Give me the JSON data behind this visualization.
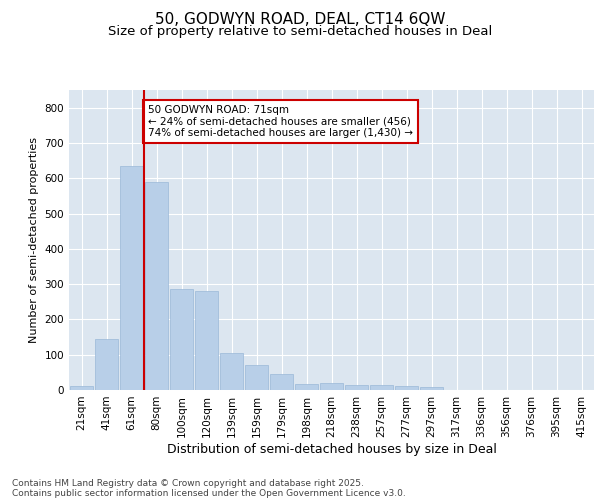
{
  "title": "50, GODWYN ROAD, DEAL, CT14 6QW",
  "subtitle": "Size of property relative to semi-detached houses in Deal",
  "xlabel": "Distribution of semi-detached houses by size in Deal",
  "ylabel": "Number of semi-detached properties",
  "categories": [
    "21sqm",
    "41sqm",
    "61sqm",
    "80sqm",
    "100sqm",
    "120sqm",
    "139sqm",
    "159sqm",
    "179sqm",
    "198sqm",
    "218sqm",
    "238sqm",
    "257sqm",
    "277sqm",
    "297sqm",
    "317sqm",
    "336sqm",
    "356sqm",
    "376sqm",
    "395sqm",
    "415sqm"
  ],
  "values": [
    12,
    145,
    635,
    590,
    285,
    280,
    105,
    70,
    45,
    18,
    20,
    15,
    15,
    10,
    8,
    0,
    0,
    0,
    0,
    0,
    0
  ],
  "bar_color": "#b8cfe8",
  "bar_edge_color": "#9ab8d8",
  "red_line_x": 2.5,
  "annotation_text": "50 GODWYN ROAD: 71sqm\n← 24% of semi-detached houses are smaller (456)\n74% of semi-detached houses are larger (1,430) →",
  "annotation_box_color": "#ffffff",
  "annotation_box_edge": "#cc0000",
  "red_line_color": "#cc0000",
  "ylim": [
    0,
    850
  ],
  "yticks": [
    0,
    100,
    200,
    300,
    400,
    500,
    600,
    700,
    800
  ],
  "background_color": "#dce6f0",
  "fig_background": "#ffffff",
  "footer_line1": "Contains HM Land Registry data © Crown copyright and database right 2025.",
  "footer_line2": "Contains public sector information licensed under the Open Government Licence v3.0.",
  "title_fontsize": 11,
  "subtitle_fontsize": 9.5,
  "xlabel_fontsize": 9,
  "ylabel_fontsize": 8,
  "tick_fontsize": 7.5,
  "footer_fontsize": 6.5
}
